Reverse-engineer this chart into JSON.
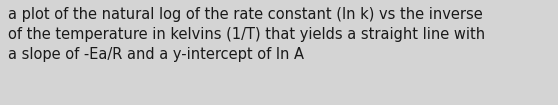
{
  "text": "a plot of the natural log of the rate constant (ln k) vs the inverse\nof the temperature in kelvins (1/T) that yields a straight line with\na slope of -Ea/R and a y-intercept of ln A",
  "background_color": "#d4d4d4",
  "text_color": "#1a1a1a",
  "font_size": 10.5,
  "font_family": "DejaVu Sans",
  "fig_width": 5.58,
  "fig_height": 1.05,
  "dpi": 100
}
